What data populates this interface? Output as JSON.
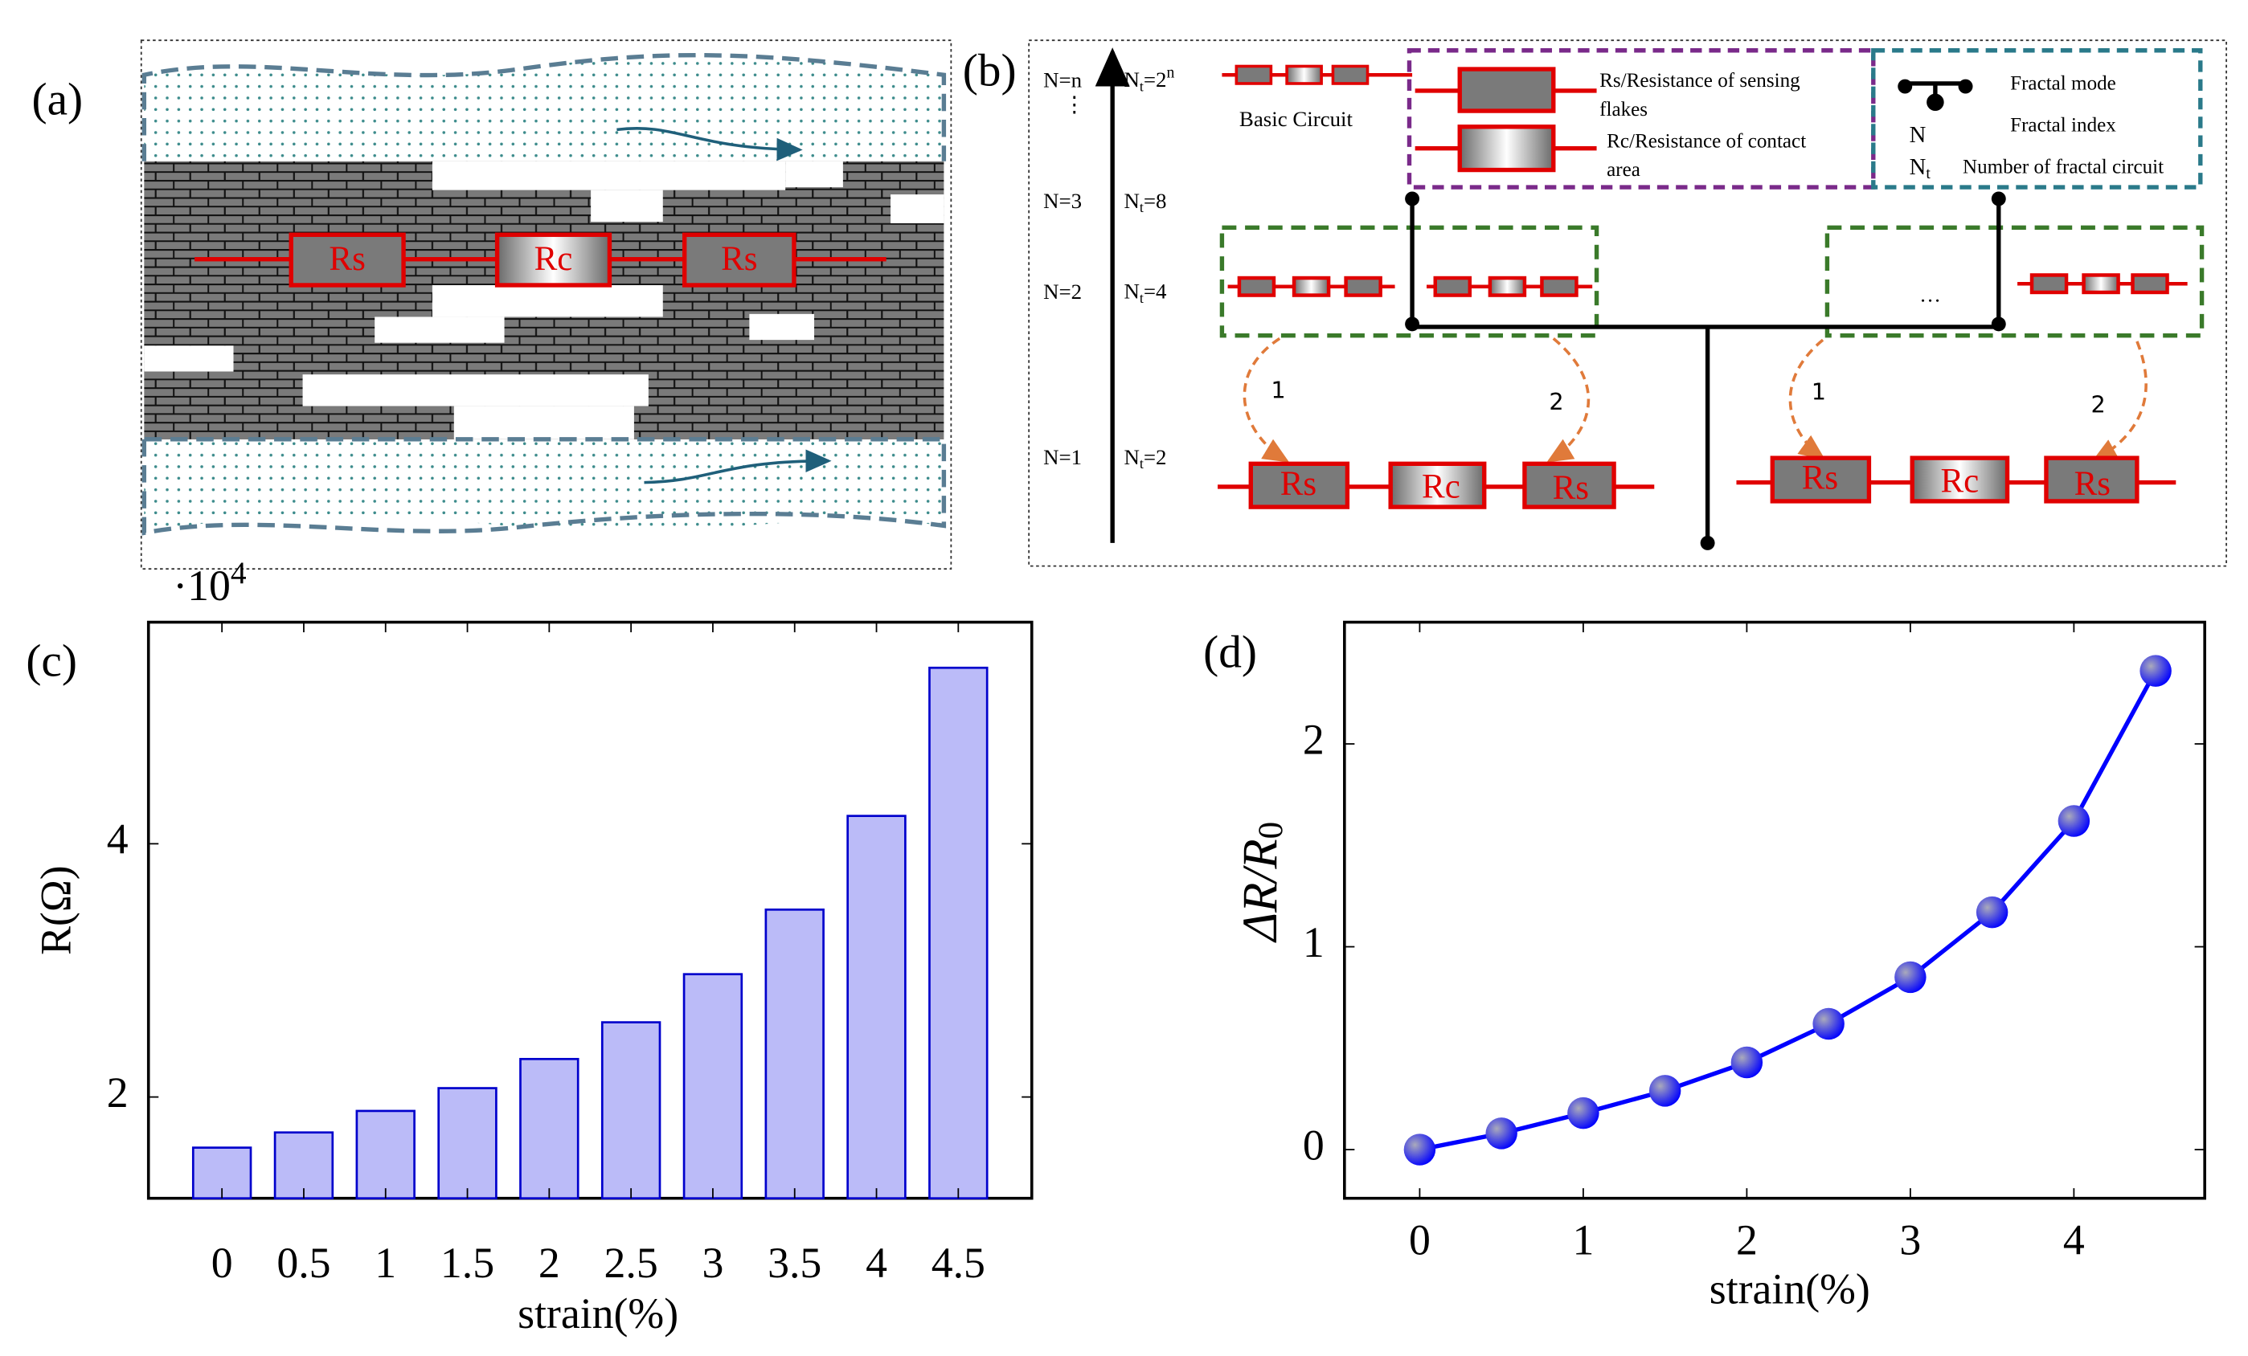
{
  "panel_labels": [
    "(a)",
    "(b)",
    "(c)",
    "(d)"
  ],
  "diagram_a": {
    "resistors": [
      "Rs",
      "Rc",
      "Rs"
    ]
  },
  "diagram_b": {
    "levels": [
      {
        "n": "N=n",
        "nt": "N",
        "sub": "t",
        "eq": "=2",
        "sup": "n"
      },
      {
        "n": "N=3",
        "nt": "N",
        "sub": "t",
        "eq": "=8"
      },
      {
        "n": "N=2",
        "nt": "N",
        "sub": "t",
        "eq": "=4"
      },
      {
        "n": "N=1",
        "nt": "N",
        "sub": "t",
        "eq": "=2"
      }
    ],
    "continuation": "⋮",
    "basic_circuit": "Basic Circuit",
    "legend_rs": [
      "Rs/Resistance of sensing",
      "flakes"
    ],
    "legend_rc": [
      "Rc/Resistance of contact",
      "area"
    ],
    "fractal_mode": "Fractal mode",
    "index_symbol": "N",
    "fractal_index": "Fractal index",
    "count_symbol": "N",
    "count_sub": "t",
    "fractal_count": "Number of fractal circuit",
    "ellipsis": "…",
    "branch_labels": [
      "1",
      "2",
      "1",
      "2"
    ],
    "left_resistors": [
      "Rs",
      "Rc",
      "Rs"
    ],
    "right_resistors": [
      "Rs",
      "Rc",
      "Rs"
    ]
  },
  "chart_data": [
    {
      "type": "bar",
      "categories": [
        "0",
        "0.5",
        "1",
        "1.5",
        "2",
        "2.5",
        "3",
        "3.5",
        "4",
        "4.5"
      ],
      "values": [
        1.6,
        1.72,
        1.89,
        2.07,
        2.3,
        2.59,
        2.97,
        3.48,
        4.22,
        5.39
      ],
      "ylim": [
        1.2,
        5.75
      ],
      "yticks": [
        2,
        4
      ],
      "y_label": "R(Ω)",
      "x_label": "strain(%)",
      "multiplier": "·10",
      "multiplier_exp": "4",
      "color": "#bbbbf8",
      "edge_color": "#0000cc"
    },
    {
      "type": "line",
      "x": [
        0,
        0.5,
        1,
        1.5,
        2,
        2.5,
        3,
        3.5,
        4,
        4.5
      ],
      "values": [
        0,
        0.08,
        0.18,
        0.29,
        0.43,
        0.62,
        0.85,
        1.17,
        1.62,
        2.36
      ],
      "xlim": [
        -0.46,
        4.8
      ],
      "ylim": [
        -0.24,
        2.6
      ],
      "xticks": [
        0,
        1,
        2,
        3,
        4
      ],
      "yticks": [
        0,
        1,
        2
      ],
      "x_label": "strain(%)",
      "y_label": "ΔR/R",
      "y_label_sub": "0",
      "color": "#0000ff"
    }
  ]
}
